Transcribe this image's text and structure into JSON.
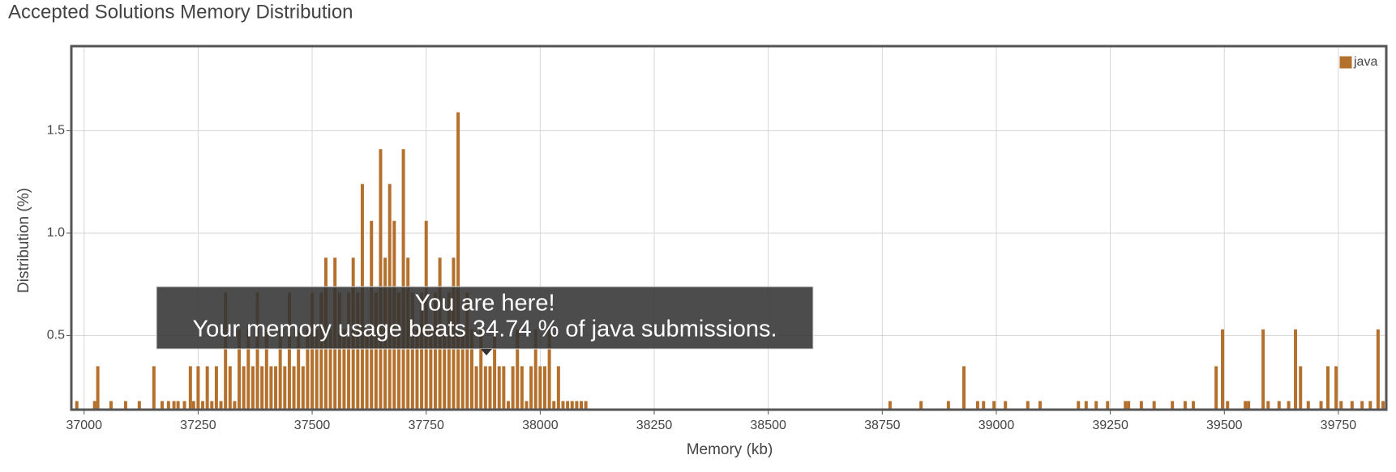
{
  "chart_data": {
    "type": "bar",
    "title": "Accepted Solutions Memory Distribution",
    "xlabel": "Memory (kb)",
    "ylabel": "Distribution (%)",
    "annotation": {
      "title": "You are here!",
      "text": "Your memory usage beats 34.74 % of java submissions."
    },
    "legend": "upper right",
    "grid": true,
    "xlim": [
      36972,
      39855
    ],
    "ylim": [
      0.138,
      1.913
    ],
    "xticks": [
      37000,
      37250,
      37500,
      37750,
      38000,
      38250,
      38500,
      38750,
      39000,
      39250,
      39500,
      39750
    ],
    "yticks": [
      0.5,
      {
        "value": 1,
        "label": "1.0"
      },
      1.5
    ],
    "series": [
      {
        "name": "java",
        "color": "#b4712e",
        "x": [
          36984,
          37023,
          37030,
          37059,
          37091,
          37121,
          37153,
          37171,
          37185,
          37197,
          37206,
          37220,
          37233,
          37240,
          37250,
          37260,
          37270,
          37280,
          37290,
          37300,
          37310,
          37320,
          37330,
          37340,
          37350,
          37360,
          37370,
          37380,
          37390,
          37400,
          37410,
          37420,
          37430,
          37440,
          37450,
          37460,
          37470,
          37480,
          37490,
          37500,
          37510,
          37520,
          37530,
          37540,
          37550,
          37560,
          37570,
          37580,
          37590,
          37600,
          37610,
          37620,
          37630,
          37640,
          37650,
          37660,
          37670,
          37680,
          37690,
          37700,
          37710,
          37720,
          37730,
          37740,
          37750,
          37760,
          37770,
          37780,
          37790,
          37800,
          37810,
          37820,
          37830,
          37840,
          37850,
          37860,
          37870,
          37880,
          37890,
          37900,
          37910,
          37920,
          37930,
          37940,
          37950,
          37960,
          37970,
          37980,
          37990,
          38000,
          38010,
          38020,
          38030,
          38040,
          38050,
          38060,
          38070,
          38080,
          38090,
          38100,
          38767,
          38835,
          38895,
          38929,
          38959,
          38972,
          38995,
          39020,
          39069,
          39096,
          39180,
          39197,
          39219,
          39244,
          39283,
          39290,
          39318,
          39346,
          39386,
          39414,
          39432,
          39482,
          39496,
          39507,
          39546,
          39553,
          39585,
          39596,
          39620,
          39641,
          39656,
          39667,
          39684,
          39712,
          39727,
          39745,
          39756,
          39780,
          39802,
          39820,
          39837,
          39848
        ],
        "values": [
          0.18,
          0.18,
          0.35,
          0.18,
          0.18,
          0.18,
          0.35,
          0.18,
          0.18,
          0.18,
          0.18,
          0.18,
          0.35,
          0.18,
          0.35,
          0.18,
          0.35,
          0.18,
          0.35,
          0.18,
          0.71,
          0.35,
          0.18,
          0.53,
          0.35,
          0.53,
          0.35,
          0.71,
          0.35,
          0.53,
          0.35,
          0.35,
          0.53,
          0.35,
          0.71,
          0.35,
          0.53,
          0.35,
          0.53,
          0.71,
          0.53,
          0.71,
          0.88,
          0.53,
          0.88,
          0.71,
          0.53,
          0.71,
          0.88,
          0.71,
          1.24,
          0.53,
          1.06,
          0.71,
          1.41,
          0.88,
          1.24,
          1.06,
          0.71,
          1.41,
          0.88,
          0.71,
          0.53,
          0.71,
          1.06,
          0.53,
          0.71,
          0.88,
          0.53,
          0.71,
          0.88,
          1.59,
          0.53,
          0.71,
          0.53,
          0.35,
          0.53,
          0.35,
          0.35,
          0.53,
          0.35,
          0.35,
          0.18,
          0.35,
          0.53,
          0.35,
          0.18,
          0.35,
          0.53,
          0.35,
          0.35,
          0.53,
          0.18,
          0.35,
          0.18,
          0.18,
          0.18,
          0.18,
          0.18,
          0.18,
          0.18,
          0.18,
          0.18,
          0.35,
          0.18,
          0.18,
          0.18,
          0.18,
          0.18,
          0.18,
          0.18,
          0.18,
          0.18,
          0.18,
          0.18,
          0.18,
          0.18,
          0.18,
          0.18,
          0.18,
          0.18,
          0.35,
          0.53,
          0.18,
          0.18,
          0.18,
          0.53,
          0.18,
          0.18,
          0.18,
          0.53,
          0.35,
          0.18,
          0.18,
          0.35,
          0.35,
          0.18,
          0.18,
          0.18,
          0.18,
          0.53,
          0.18
        ]
      }
    ]
  }
}
